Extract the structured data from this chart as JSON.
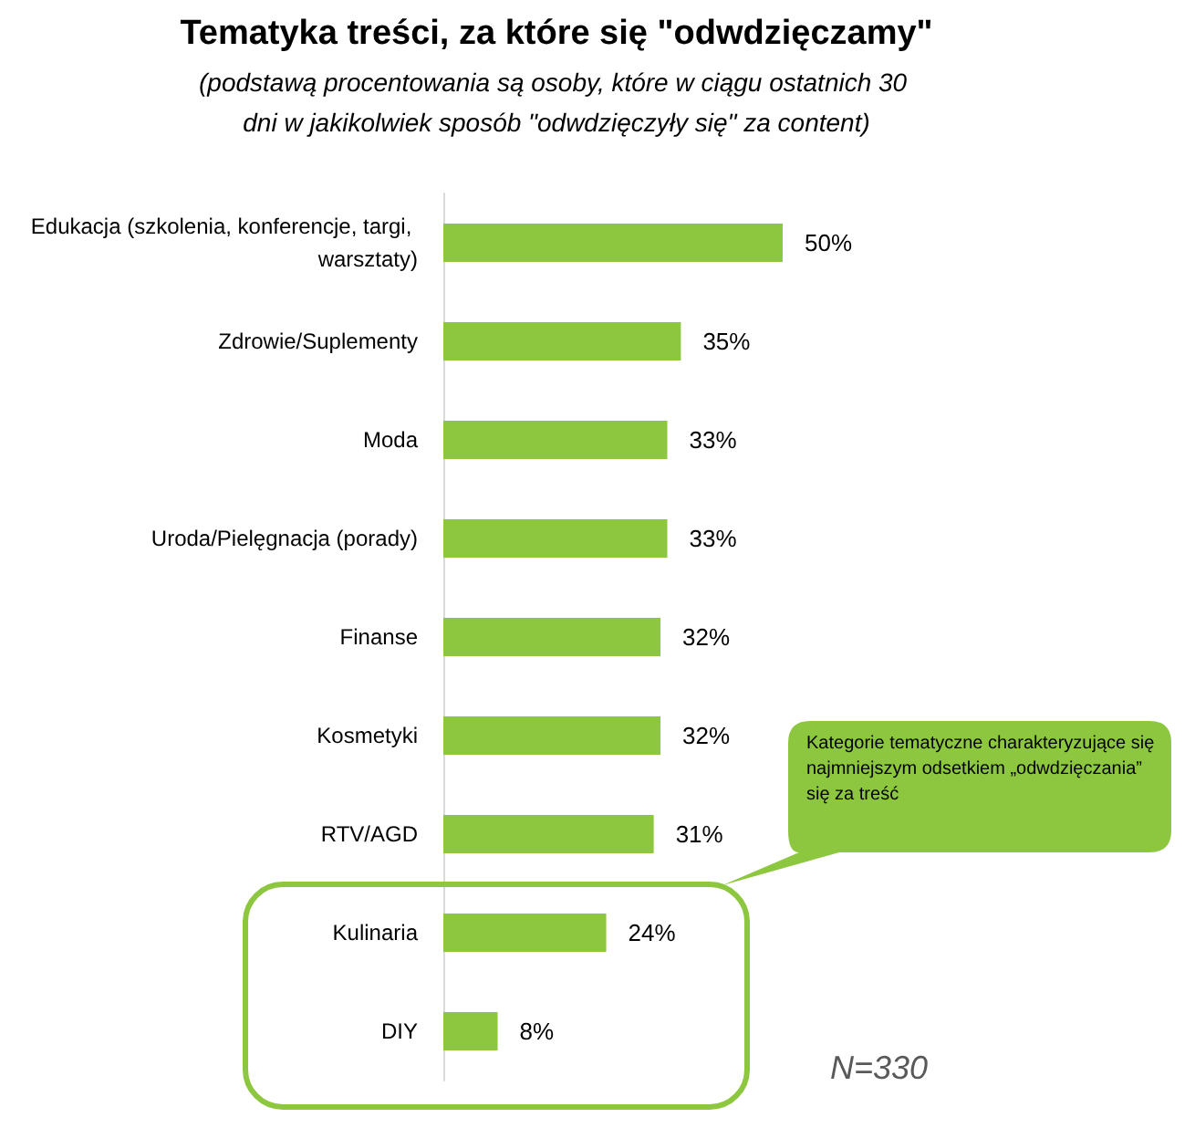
{
  "chart_data": {
    "type": "bar",
    "orientation": "horizontal",
    "title": "Tematyka treści, za które się \"odwdzięczamy\"",
    "subtitle": "(podstawą procentowania są osoby, które w ciągu ostatnich 30 dni w jakikolwiek sposób \"odwdzięczyły się\" za content)",
    "categories": [
      "Edukacja (szkolenia, konferencje, targi, warsztaty)",
      "Zdrowie/Suplementy",
      "Moda",
      "Uroda/Pielęgnacja (porady)",
      "Finanse",
      "Kosmetyki",
      "RTV/AGD",
      "Kulinaria",
      "DIY"
    ],
    "values": [
      50,
      35,
      33,
      33,
      32,
      32,
      31,
      24,
      8
    ],
    "value_labels": [
      "50%",
      "35%",
      "33%",
      "33%",
      "32%",
      "32%",
      "31%",
      "24%",
      "8%"
    ],
    "color": "#8dc63f",
    "annotations": [
      "Kategorie tematyczne charakteryzujące się najmniejszym odsetkiem „odwdzięczania” się za treść",
      "N=330"
    ]
  }
}
